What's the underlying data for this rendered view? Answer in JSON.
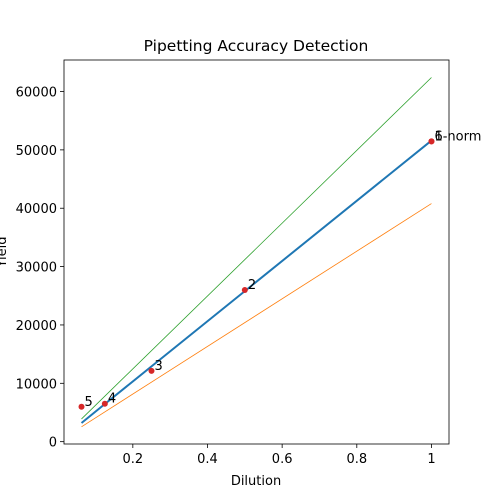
{
  "chart_data": {
    "type": "line",
    "title": "Pipetting Accuracy Detection",
    "xlabel": "Dilution",
    "ylabel": "Yield",
    "xlim": [
      0.0156,
      1.047
    ],
    "ylim": [
      -400,
      65400
    ],
    "xticks": [
      0.2,
      0.4,
      0.6,
      0.8,
      1.0
    ],
    "yticks": [
      0,
      10000,
      20000,
      30000,
      40000,
      50000,
      60000
    ],
    "series": [
      {
        "color": "#2ca02c",
        "width": 0.8,
        "x": [
          0.0625,
          1.0
        ],
        "values": [
          3900,
          62400
        ]
      },
      {
        "color": "#ff7f0e",
        "width": 0.8,
        "x": [
          0.0625,
          1.0
        ],
        "values": [
          2550,
          40800
        ]
      },
      {
        "color": "#1f77b4",
        "width": 2,
        "x": [
          0.0625,
          0.125,
          0.25,
          0.5,
          1.0
        ],
        "values": [
          3200,
          6450,
          12900,
          25800,
          51600
        ]
      }
    ],
    "points": {
      "color": "#d62728",
      "x": [
        1.0,
        0.5,
        0.25,
        0.125,
        0.0625,
        1.0
      ],
      "values": [
        51450,
        25980,
        12140,
        6500,
        5980,
        51450
      ],
      "labels": [
        "1-norm",
        "2",
        "3",
        "4",
        "5",
        "6"
      ]
    }
  }
}
